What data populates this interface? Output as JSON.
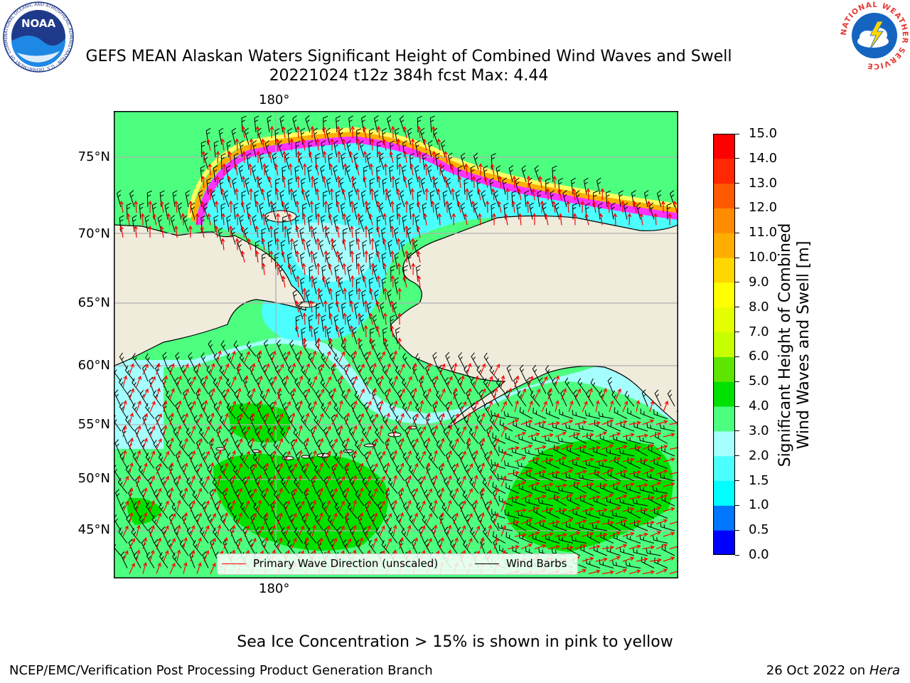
{
  "title": {
    "line1": "GEFS MEAN Alaskan Waters Significant Height of Combined Wind Waves and Swell",
    "line2": "20221024 t12z 384h fcst   Max: 4.44"
  },
  "map": {
    "lon_label_top": "180°",
    "lon_label_bottom": "180°",
    "lat_labels": [
      "75°N",
      "70°N",
      "65°N",
      "60°N",
      "55°N",
      "50°N",
      "45°N"
    ],
    "land_color": "#efecdc",
    "grid_color": "#b0b0b0"
  },
  "legend": {
    "wave_label": "Primary Wave Direction (unscaled)",
    "barb_label": "Wind Barbs",
    "wave_color": "#ff0000",
    "barb_color": "#000000"
  },
  "colorbar": {
    "label_line1": "Significant Height of Combined",
    "label_line2": "Wind Waves and Swell [m]",
    "ticks": [
      "0.0",
      "0.5",
      "1.0",
      "1.5",
      "2.0",
      "3.0",
      "4.0",
      "5.0",
      "6.0",
      "7.0",
      "8.0",
      "9.0",
      "10.0",
      "11.0",
      "12.0",
      "13.0",
      "14.0",
      "15.0"
    ],
    "colors": [
      "#0000ff",
      "#0077ff",
      "#00ffff",
      "#4cffff",
      "#a5ffff",
      "#4dff7f",
      "#00e100",
      "#5ee600",
      "#c8ff00",
      "#e5ff00",
      "#ffff00",
      "#ffd700",
      "#ffae00",
      "#ff8c00",
      "#ff5a00",
      "#ff2800",
      "#ff0000"
    ]
  },
  "notes": {
    "ice": "Sea Ice Concentration > 15% is shown in pink to yellow",
    "credit": "NCEP/EMC/Verification Post Processing Product Generation Branch",
    "date": "26 Oct 2022 on",
    "machine": "Hera"
  },
  "logos": {
    "noaa": "NOAA",
    "noaa_ring": "NATIONAL OCEANIC AND ATMOSPHERIC ADMINISTRATION · U.S. DEPARTMENT OF COMMERCE",
    "nws_ring": "NATIONAL WEATHER SERVICE"
  }
}
